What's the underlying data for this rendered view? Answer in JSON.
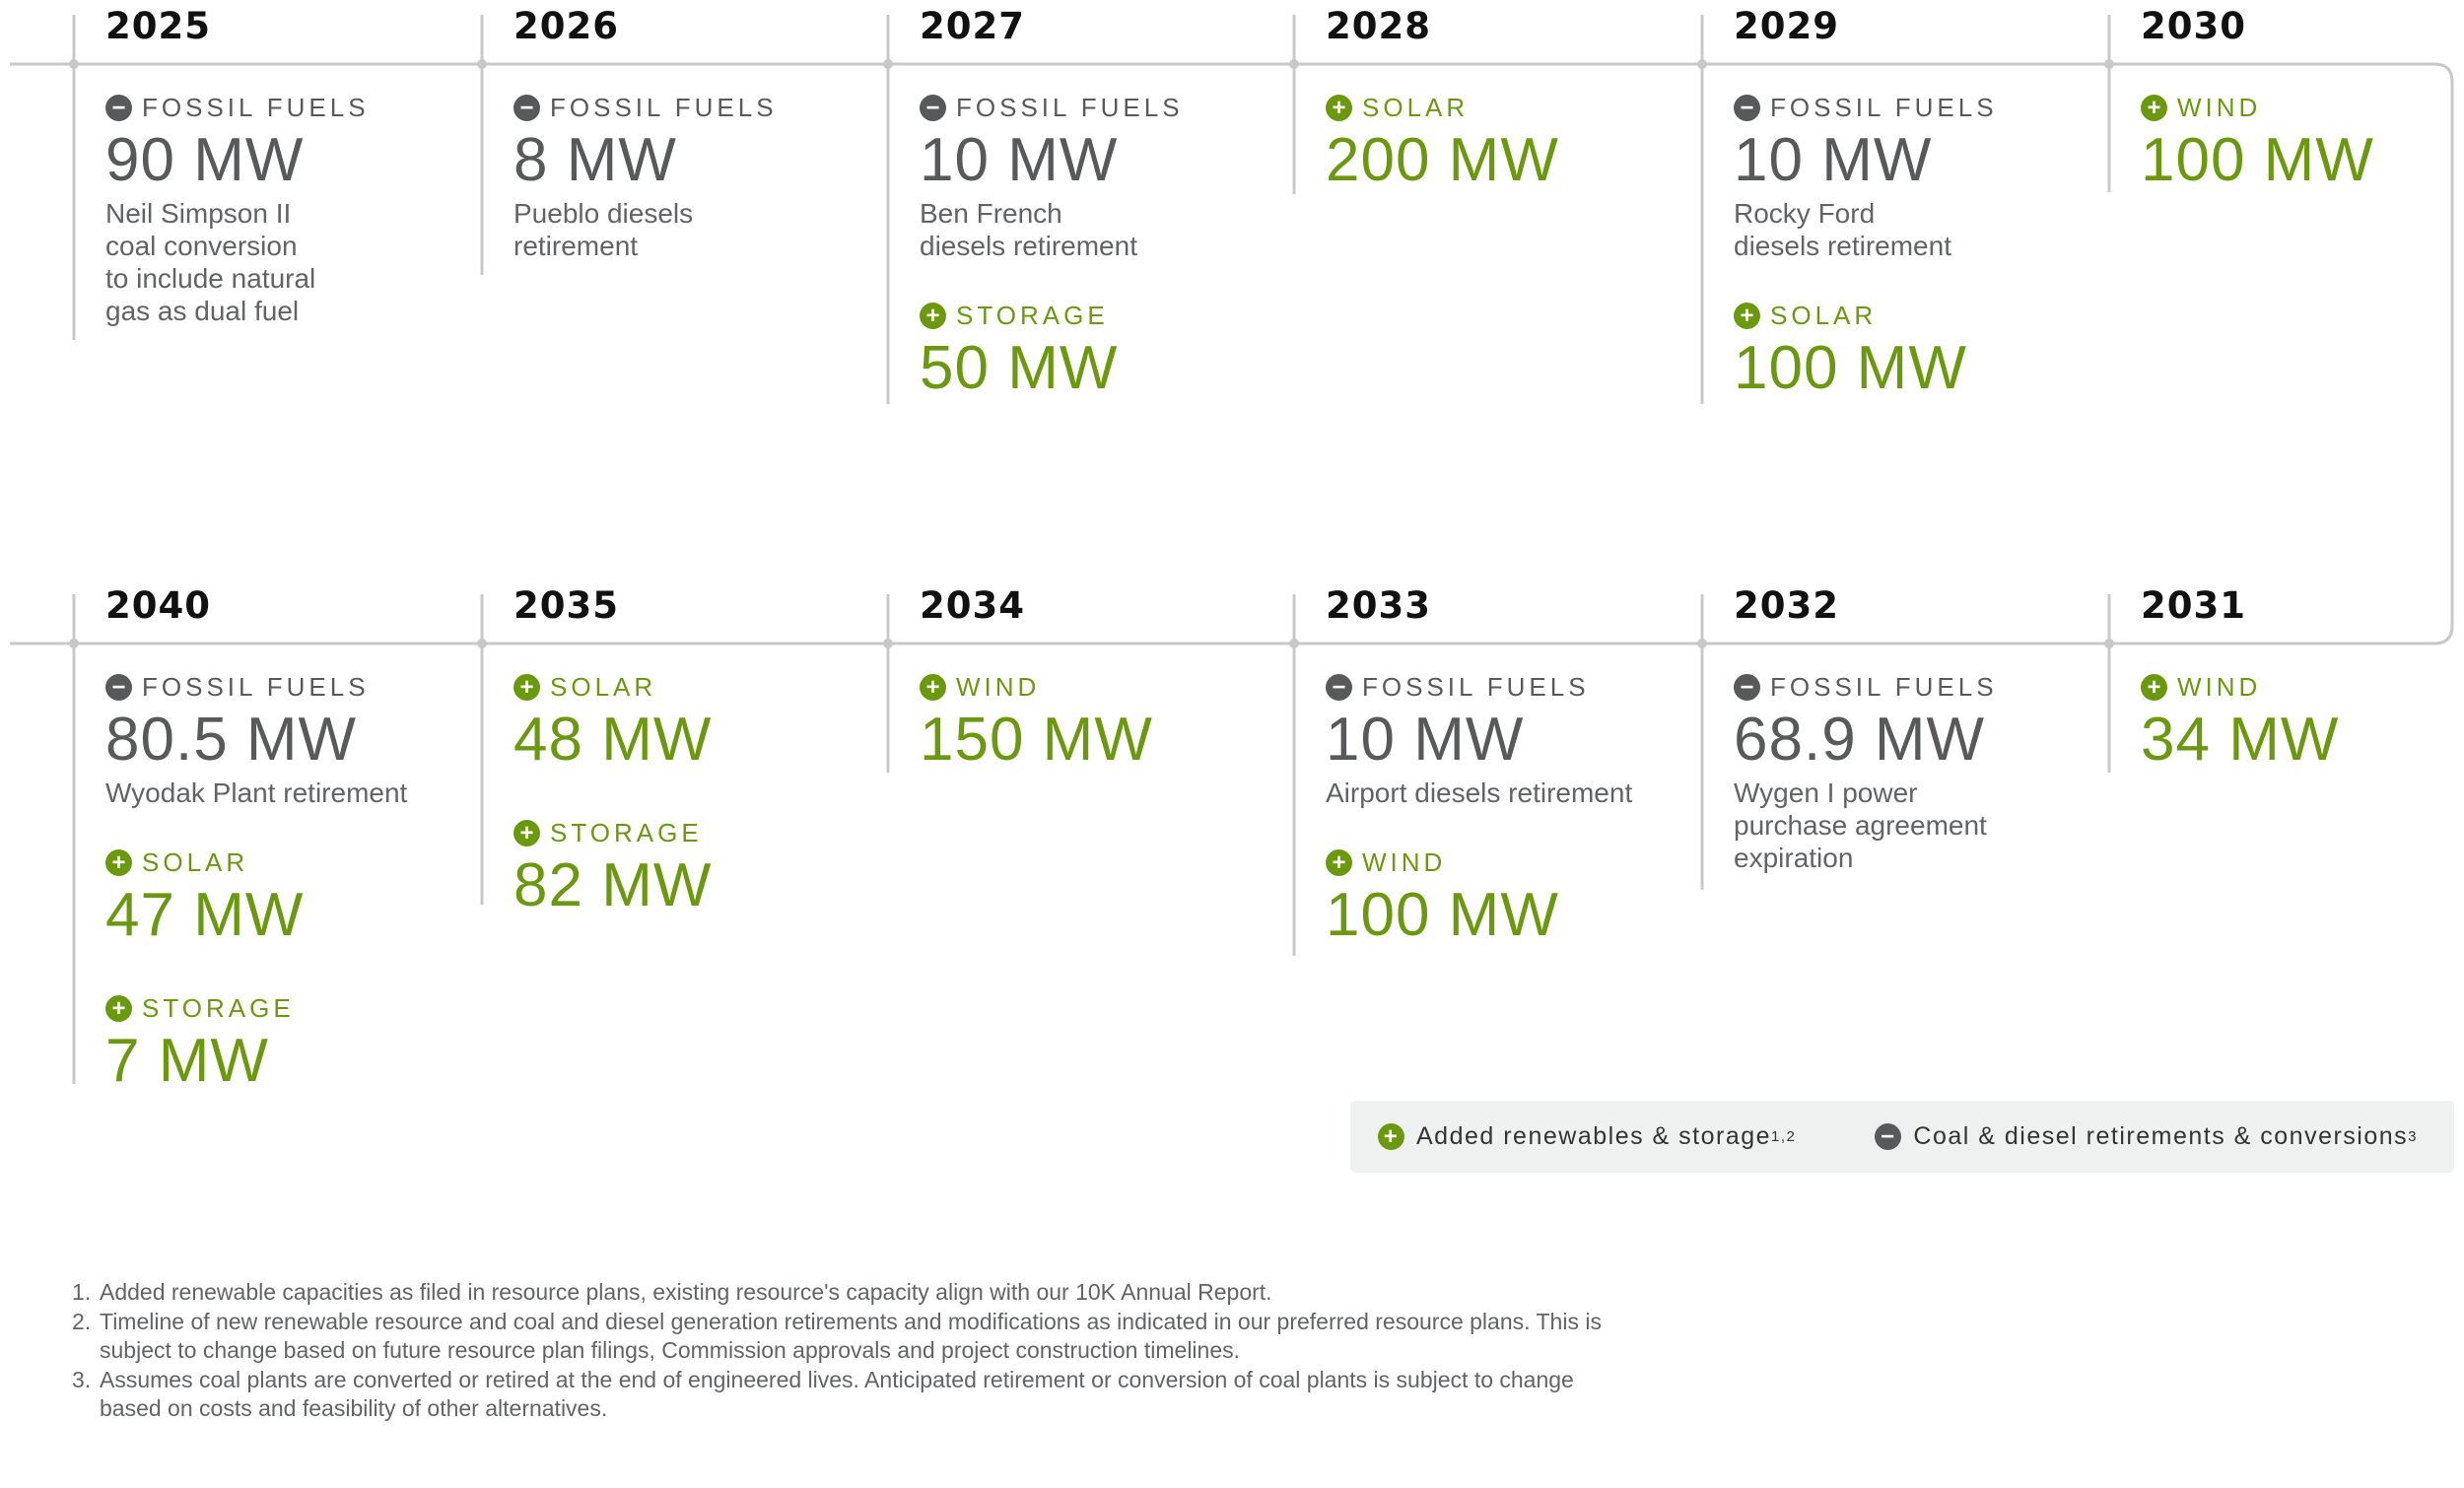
{
  "colors": {
    "renewable": "#6a990e",
    "fossil": "#58595b",
    "line": "#c8c8c8",
    "legend_bg": "#eff1f1"
  },
  "timeline": [
    {
      "year": "2025",
      "entries": [
        {
          "kind": "minus",
          "sign": "−",
          "type": "FOSSIL FUELS",
          "mw": "90 MW",
          "desc": "Neil Simpson II\ncoal conversion\nto include natural\ngas as dual fuel"
        }
      ]
    },
    {
      "year": "2026",
      "entries": [
        {
          "kind": "minus",
          "sign": "−",
          "type": "FOSSIL FUELS",
          "mw": "8 MW",
          "desc": "Pueblo diesels\nretirement"
        }
      ]
    },
    {
      "year": "2027",
      "entries": [
        {
          "kind": "minus",
          "sign": "−",
          "type": "FOSSIL FUELS",
          "mw": "10 MW",
          "desc": "Ben French\ndiesels retirement"
        },
        {
          "kind": "plus",
          "sign": "+",
          "type": "STORAGE",
          "mw": "50 MW",
          "desc": ""
        }
      ]
    },
    {
      "year": "2028",
      "entries": [
        {
          "kind": "plus",
          "sign": "+",
          "type": "SOLAR",
          "mw": "200 MW",
          "desc": ""
        }
      ]
    },
    {
      "year": "2029",
      "entries": [
        {
          "kind": "minus",
          "sign": "−",
          "type": "FOSSIL FUELS",
          "mw": "10 MW",
          "desc": "Rocky Ford\ndiesels retirement"
        },
        {
          "kind": "plus",
          "sign": "+",
          "type": "SOLAR",
          "mw": "100 MW",
          "desc": ""
        }
      ]
    },
    {
      "year": "2030",
      "entries": [
        {
          "kind": "plus",
          "sign": "+",
          "type": "WIND",
          "mw": "100 MW",
          "desc": ""
        }
      ]
    },
    {
      "year": "2040",
      "entries": [
        {
          "kind": "minus",
          "sign": "−",
          "type": "FOSSIL FUELS",
          "mw": "80.5 MW",
          "desc": "Wyodak Plant retirement"
        },
        {
          "kind": "plus",
          "sign": "+",
          "type": "SOLAR",
          "mw": "47 MW",
          "desc": ""
        },
        {
          "kind": "plus",
          "sign": "+",
          "type": "STORAGE",
          "mw": "7 MW",
          "desc": ""
        }
      ]
    },
    {
      "year": "2035",
      "entries": [
        {
          "kind": "plus",
          "sign": "+",
          "type": "SOLAR",
          "mw": "48 MW",
          "desc": ""
        },
        {
          "kind": "plus",
          "sign": "+",
          "type": "STORAGE",
          "mw": "82 MW",
          "desc": ""
        }
      ]
    },
    {
      "year": "2034",
      "entries": [
        {
          "kind": "plus",
          "sign": "+",
          "type": "WIND",
          "mw": "150 MW",
          "desc": ""
        }
      ]
    },
    {
      "year": "2033",
      "entries": [
        {
          "kind": "minus",
          "sign": "−",
          "type": "FOSSIL FUELS",
          "mw": "10 MW",
          "desc": "Airport diesels retirement"
        },
        {
          "kind": "plus",
          "sign": "+",
          "type": "WIND",
          "mw": "100 MW",
          "desc": ""
        }
      ]
    },
    {
      "year": "2032",
      "entries": [
        {
          "kind": "minus",
          "sign": "−",
          "type": "FOSSIL FUELS",
          "mw": "68.9 MW",
          "desc": "Wygen I power\npurchase agreement\nexpiration"
        }
      ]
    },
    {
      "year": "2031",
      "entries": [
        {
          "kind": "plus",
          "sign": "+",
          "type": "WIND",
          "mw": "34 MW",
          "desc": ""
        }
      ]
    }
  ],
  "legend": {
    "added_sign": "+",
    "added_label": "Added renewables & storage",
    "added_sup": "1,2",
    "retired_sign": "−",
    "retired_label": "Coal & diesel retirements & conversions",
    "retired_sup": "3"
  },
  "footnotes": [
    {
      "num": "1.",
      "text": "Added renewable capacities as filed in resource plans, existing resource's capacity align with our 10K Annual Report."
    },
    {
      "num": "2.",
      "text": "Timeline of new renewable resource and coal and diesel generation retirements and modifications as indicated in our preferred resource plans. This is subject to change based on future resource plan filings, Commission approvals and project construction timelines."
    },
    {
      "num": "3.",
      "text": "Assumes coal plants are converted or retired at the end of engineered lives. Anticipated retirement or conversion of coal plants is subject to change based on costs and feasibility of other alternatives."
    }
  ]
}
